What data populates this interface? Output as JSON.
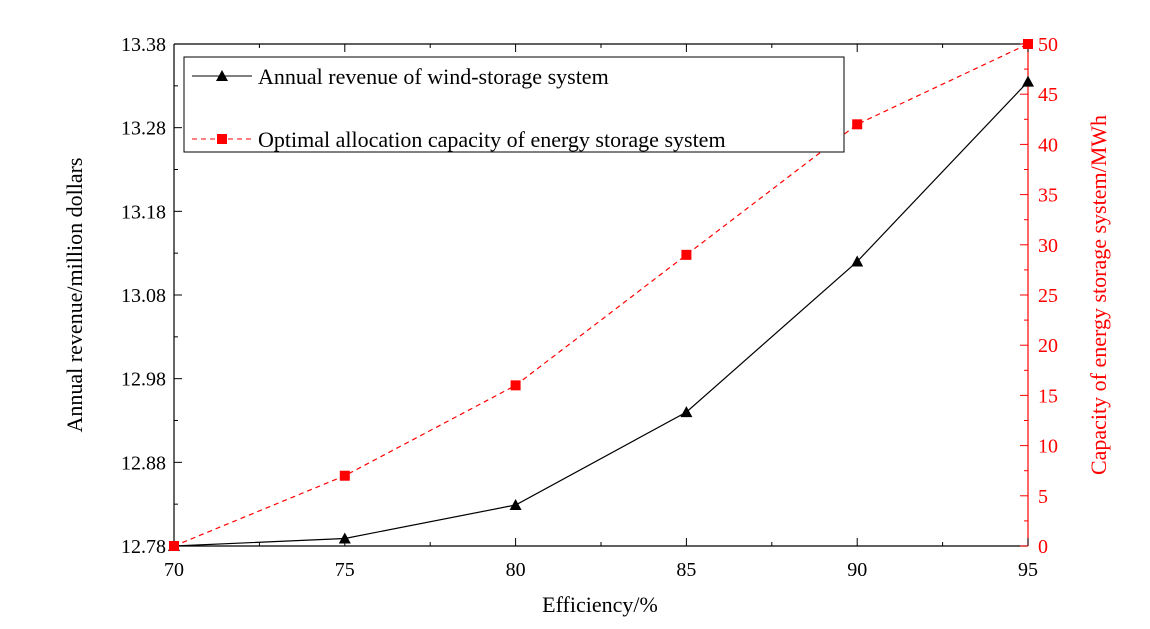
{
  "chart_data": {
    "type": "line",
    "xlabel": "Efficiency/%",
    "ylabel_left": "Annual revenue/million dollars",
    "ylabel_right": "Capacity of energy storage system/MWh",
    "x": [
      70,
      75,
      80,
      85,
      90,
      95
    ],
    "xlim": [
      70,
      95
    ],
    "xticks": [
      70,
      75,
      80,
      85,
      90,
      95
    ],
    "ylim_left": [
      12.78,
      13.38
    ],
    "yticks_left": [
      "12.78",
      "12.88",
      "12.98",
      "13.08",
      "13.18",
      "13.28",
      "13.38"
    ],
    "ylim_right": [
      0,
      50
    ],
    "yticks_right": [
      0,
      5,
      10,
      15,
      20,
      25,
      30,
      35,
      40,
      45,
      50
    ],
    "grid": false,
    "legend_position": "top-left",
    "series": [
      {
        "name": "Annual revenue of wind-storage system",
        "axis": "left",
        "color": "#000000",
        "marker": "triangle",
        "line_style": "solid",
        "values": [
          12.78,
          12.789,
          12.829,
          12.94,
          13.12,
          13.335
        ]
      },
      {
        "name": "Optimal allocation capacity of energy storage system",
        "axis": "right",
        "color": "#ff0000",
        "marker": "square",
        "line_style": "dashed",
        "values": [
          0,
          7,
          16,
          29,
          42,
          50
        ]
      }
    ]
  }
}
